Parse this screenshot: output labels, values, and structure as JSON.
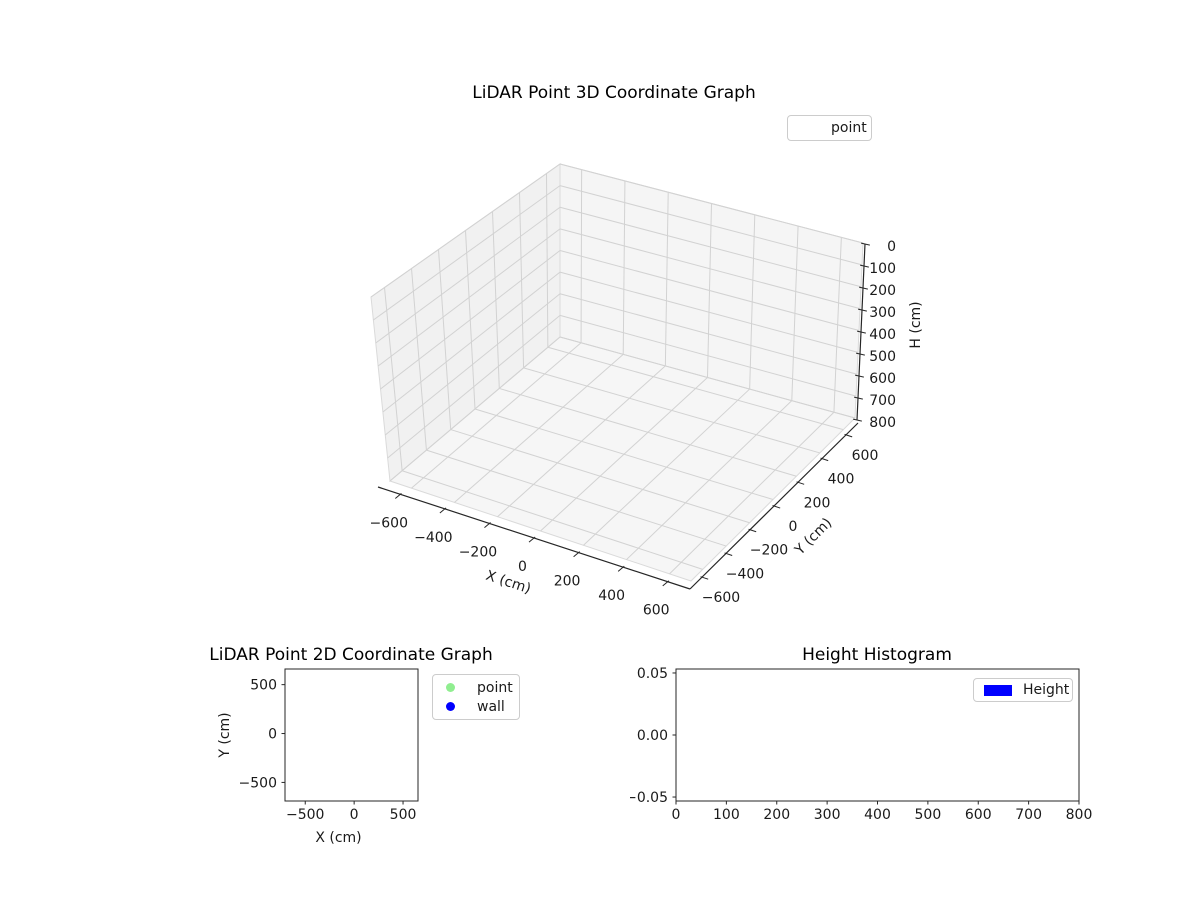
{
  "figure": {
    "background": "#ffffff"
  },
  "chart_data": [
    {
      "id": "lidar_3d",
      "type": "scatter3d",
      "title": "LiDAR Point 3D Coordinate Graph",
      "grid": true,
      "legend": {
        "position": "upper right",
        "entries": [
          {
            "label": "point",
            "marker_visible": false
          }
        ]
      },
      "axes": {
        "x": {
          "label": "X (cm)",
          "range": [
            -700,
            700
          ],
          "ticks": [
            {
              "v": -600,
              "label": "−600"
            },
            {
              "v": -400,
              "label": "−400"
            },
            {
              "v": -200,
              "label": "−200"
            },
            {
              "v": 0,
              "label": "0"
            },
            {
              "v": 200,
              "label": "200"
            },
            {
              "v": 400,
              "label": "400"
            },
            {
              "v": 600,
              "label": "600"
            }
          ]
        },
        "y": {
          "label": "Y (cm)",
          "range": [
            -700,
            700
          ],
          "ticks": [
            {
              "v": -600,
              "label": "−600"
            },
            {
              "v": -400,
              "label": "−400"
            },
            {
              "v": -200,
              "label": "−200"
            },
            {
              "v": 0,
              "label": "0"
            },
            {
              "v": 200,
              "label": "200"
            },
            {
              "v": 400,
              "label": "400"
            },
            {
              "v": 600,
              "label": "600"
            }
          ]
        },
        "z": {
          "label": "H (cm)",
          "range": [
            0,
            800
          ],
          "inverted": true,
          "ticks": [
            {
              "v": 0,
              "label": "0"
            },
            {
              "v": 100,
              "label": "100"
            },
            {
              "v": 200,
              "label": "200"
            },
            {
              "v": 300,
              "label": "300"
            },
            {
              "v": 400,
              "label": "400"
            },
            {
              "v": 500,
              "label": "500"
            },
            {
              "v": 600,
              "label": "600"
            },
            {
              "v": 700,
              "label": "700"
            },
            {
              "v": 800,
              "label": "800"
            }
          ]
        }
      },
      "series": [
        {
          "name": "point",
          "points": []
        }
      ]
    },
    {
      "id": "lidar_2d",
      "type": "scatter",
      "title": "LiDAR Point 2D Coordinate Graph",
      "xlabel": "X (cm)",
      "ylabel": "Y (cm)",
      "xlim": [
        -707,
        653
      ],
      "ylim": [
        -690,
        660
      ],
      "grid": false,
      "x_ticks": [
        {
          "v": -500,
          "label": "−500"
        },
        {
          "v": 0,
          "label": "0"
        },
        {
          "v": 500,
          "label": "500"
        }
      ],
      "y_ticks": [
        {
          "v": 500,
          "label": "500"
        },
        {
          "v": 0,
          "label": "0"
        },
        {
          "v": -500,
          "label": "−500"
        }
      ],
      "legend": {
        "position": "upper right outside",
        "entries": [
          {
            "label": "point",
            "color": "#90ee90"
          },
          {
            "label": "wall",
            "color": "#0000ff"
          }
        ]
      },
      "series": [
        {
          "name": "point",
          "color": "#90ee90",
          "points": []
        },
        {
          "name": "wall",
          "color": "#0000ff",
          "points": []
        }
      ]
    },
    {
      "id": "height_histogram",
      "type": "bar",
      "title": "Height Histogram",
      "xlim": [
        0,
        800
      ],
      "ylim": [
        -0.0532,
        0.0532
      ],
      "grid": false,
      "x_ticks": [
        {
          "v": 0,
          "label": "0"
        },
        {
          "v": 100,
          "label": "100"
        },
        {
          "v": 200,
          "label": "200"
        },
        {
          "v": 300,
          "label": "300"
        },
        {
          "v": 400,
          "label": "400"
        },
        {
          "v": 500,
          "label": "500"
        },
        {
          "v": 600,
          "label": "600"
        },
        {
          "v": 700,
          "label": "700"
        },
        {
          "v": 800,
          "label": "800"
        }
      ],
      "y_ticks": [
        {
          "v": 0.05,
          "label": "0.05"
        },
        {
          "v": 0,
          "label": "0.00"
        },
        {
          "v": -0.05,
          "label": "−0.05"
        }
      ],
      "legend": {
        "position": "upper right",
        "entries": [
          {
            "label": "Height",
            "color": "#0000ff"
          }
        ]
      },
      "series": [
        {
          "name": "Height",
          "color": "#0000ff",
          "values": []
        }
      ]
    }
  ]
}
